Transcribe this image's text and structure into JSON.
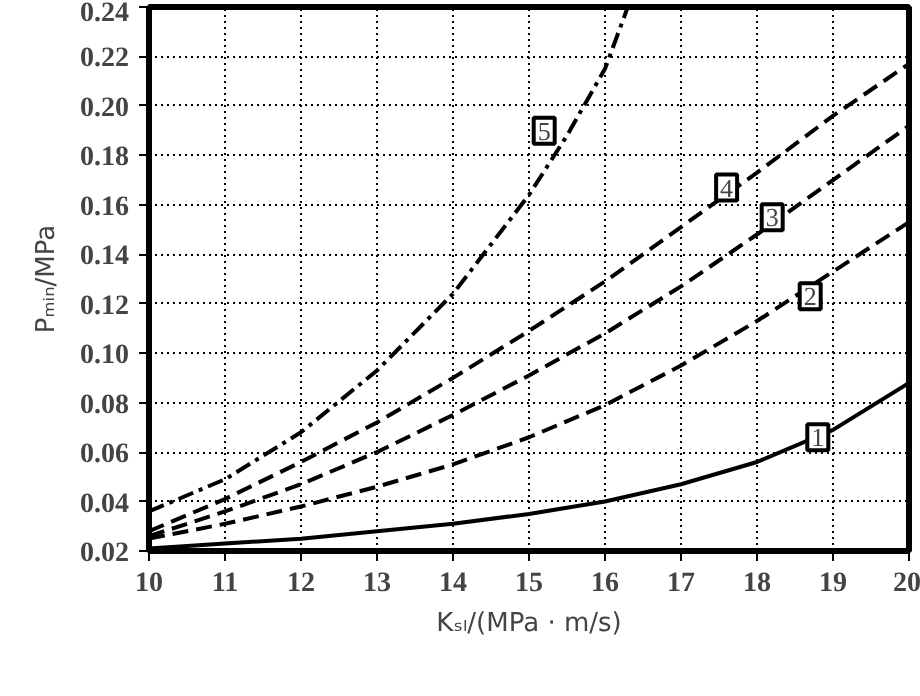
{
  "chart_data": {
    "type": "line",
    "xlabel": "Kₛₗ/(MPa · m/s)",
    "ylabel": "Pₘᵢₙ/MPa",
    "x": [
      10,
      11,
      12,
      13,
      14,
      15,
      16,
      17,
      18,
      19,
      20
    ],
    "series": [
      {
        "color": "#000000",
        "line_style": "solid",
        "values": [
          0.021,
          0.023,
          0.025,
          0.028,
          0.031,
          0.035,
          0.04,
          0.047,
          0.056,
          0.069,
          0.088
        ]
      },
      {
        "color": "#000000",
        "line_style": "dashed",
        "values": [
          0.025,
          0.031,
          0.038,
          0.046,
          0.055,
          0.066,
          0.079,
          0.095,
          0.113,
          0.133,
          0.153
        ]
      },
      {
        "color": "#000000",
        "line_style": "dashed",
        "values": [
          0.026,
          0.036,
          0.047,
          0.06,
          0.075,
          0.091,
          0.108,
          0.127,
          0.148,
          0.17,
          0.192
        ]
      },
      {
        "color": "#000000",
        "line_style": "dashed",
        "values": [
          0.028,
          0.041,
          0.056,
          0.072,
          0.09,
          0.109,
          0.129,
          0.151,
          0.173,
          0.196,
          0.217
        ]
      },
      {
        "color": "#000000",
        "line_style": "dashdot",
        "x": [
          10,
          11,
          12,
          13,
          14,
          15,
          15.5,
          16,
          16.3
        ],
        "values": [
          0.036,
          0.049,
          0.068,
          0.093,
          0.124,
          0.164,
          0.188,
          0.215,
          0.24
        ]
      }
    ],
    "annotations": [
      {
        "text": "1",
        "x": 18.8,
        "y": 0.066
      },
      {
        "text": "2",
        "x": 18.7,
        "y": 0.123
      },
      {
        "text": "3",
        "x": 18.2,
        "y": 0.155
      },
      {
        "text": "4",
        "x": 17.6,
        "y": 0.167
      },
      {
        "text": "5",
        "x": 15.2,
        "y": 0.19
      }
    ],
    "xlim": [
      10,
      20
    ],
    "xticks": [
      10,
      11,
      12,
      13,
      14,
      15,
      16,
      17,
      18,
      19,
      20
    ],
    "ylim": [
      0.02,
      0.24
    ],
    "yticks": [
      {
        "value": 0.02,
        "label": "0.02"
      },
      {
        "value": 0.04,
        "label": "0.04"
      },
      {
        "value": 0.06,
        "label": "0.06"
      },
      {
        "value": 0.08,
        "label": "0.08"
      },
      {
        "value": 0.1,
        "label": "0.10"
      },
      {
        "value": 0.12,
        "label": "0.12"
      },
      {
        "value": 0.14,
        "label": "0.14"
      },
      {
        "value": 0.16,
        "label": "0.16"
      },
      {
        "value": 0.18,
        "label": "0.18"
      },
      {
        "value": 0.2,
        "label": "0.20"
      },
      {
        "value": 0.22,
        "label": "0.22"
      },
      {
        "value": 0.24,
        "label": "0.24"
      }
    ],
    "grid": true
  }
}
